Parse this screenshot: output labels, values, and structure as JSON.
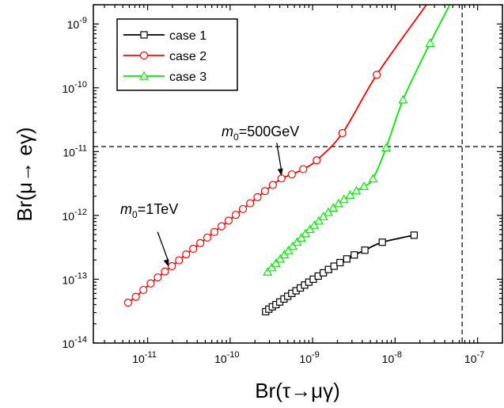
{
  "chart_data": {
    "type": "scatter",
    "xscale": "log",
    "yscale": "log",
    "xlim": [
      2.2e-12,
      2e-07
    ],
    "ylim": [
      1e-14,
      2e-09
    ],
    "xlabel": "Br(τ→μγ)",
    "ylabel": "Br(μ→ eγ)",
    "xticks": [
      {
        "base": "10",
        "exp": "-11",
        "value": 1e-11
      },
      {
        "base": "10",
        "exp": "-10",
        "value": 1e-10
      },
      {
        "base": "10",
        "exp": "-9",
        "value": 1e-09
      },
      {
        "base": "10",
        "exp": "-8",
        "value": 1e-08
      },
      {
        "base": "10",
        "exp": "-7",
        "value": 1e-07
      }
    ],
    "yticks": [
      {
        "base": "10",
        "exp": "-14",
        "value": 1e-14
      },
      {
        "base": "10",
        "exp": "-13",
        "value": 1e-13
      },
      {
        "base": "10",
        "exp": "-12",
        "value": 1e-12
      },
      {
        "base": "10",
        "exp": "-11",
        "value": 1e-11
      },
      {
        "base": "10",
        "exp": "-10",
        "value": 1e-10
      },
      {
        "base": "10",
        "exp": "-9",
        "value": 1e-09
      }
    ],
    "ref_lines": {
      "h": 1.2e-11,
      "v": 6.5e-08
    },
    "legend": {
      "position": "top-left"
    },
    "series": [
      {
        "name": "case 1",
        "color": "#000000",
        "marker": "square",
        "points": [
          [
            2.7e-10,
            3.1e-14
          ],
          [
            2.95e-10,
            3.4e-14
          ],
          [
            3.25e-10,
            3.7e-14
          ],
          [
            3.6e-10,
            4e-14
          ],
          [
            4e-10,
            4.4e-14
          ],
          [
            4.5e-10,
            4.9e-14
          ],
          [
            5e-10,
            5.4e-14
          ],
          [
            5.6e-10,
            6e-14
          ],
          [
            6.3e-10,
            6.6e-14
          ],
          [
            7.1e-10,
            7.3e-14
          ],
          [
            8e-10,
            8.1e-14
          ],
          [
            9e-10,
            9e-14
          ],
          [
            1.02e-09,
            1e-13
          ],
          [
            1.17e-09,
            1.12e-13
          ],
          [
            1.35e-09,
            1.26e-13
          ],
          [
            1.56e-09,
            1.42e-13
          ],
          [
            1.82e-09,
            1.6e-13
          ],
          [
            2.15e-09,
            1.82e-13
          ],
          [
            2.6e-09,
            2.08e-13
          ],
          [
            3.2e-09,
            2.4e-13
          ],
          [
            4.3e-09,
            2.85e-13
          ],
          [
            7e-09,
            3.8e-13
          ],
          [
            1.7e-08,
            4.9e-13
          ]
        ],
        "smooth": true
      },
      {
        "name": "case 2",
        "color": "#ff0000",
        "marker": "circle",
        "points": [
          [
            5.8e-12,
            4.3e-14
          ],
          [
            7.2e-12,
            5.3e-14
          ],
          [
            8.9e-12,
            6.8e-14
          ],
          [
            1.09e-11,
            8.6e-14
          ],
          [
            1.33e-11,
            1.07e-13
          ],
          [
            1.62e-11,
            1.32e-13
          ],
          [
            1.97e-11,
            1.6e-13
          ],
          [
            2.4e-11,
            1.98e-13
          ],
          [
            2.93e-11,
            2.45e-13
          ],
          [
            3.57e-11,
            3e-13
          ],
          [
            4.35e-11,
            3.68e-13
          ],
          [
            5.3e-11,
            4.5e-13
          ],
          [
            6.45e-11,
            5.5e-13
          ],
          [
            7.87e-11,
            6.75e-13
          ],
          [
            9.6e-11,
            8.3e-13
          ],
          [
            1.17e-10,
            1.02e-12
          ],
          [
            1.43e-10,
            1.26e-12
          ],
          [
            1.75e-10,
            1.55e-12
          ],
          [
            2.15e-10,
            1.93e-12
          ],
          [
            2.65e-10,
            2.4e-12
          ],
          [
            3.3e-10,
            3e-12
          ],
          [
            4.2e-10,
            3.8e-12
          ],
          [
            5.6e-10,
            4.4e-12
          ],
          [
            7.7e-10,
            5.3e-12
          ],
          [
            1.12e-09,
            7.3e-12
          ],
          [
            2.3e-09,
            1.95e-11
          ],
          [
            6e-09,
            1.6e-10
          ]
        ],
        "extend_to": [
          2.4e-08,
          2e-09
        ],
        "smooth": true
      },
      {
        "name": "case 3",
        "color": "#00ee00",
        "marker": "triangle",
        "points": [
          [
            2.85e-10,
            1.3e-13
          ],
          [
            3.2e-10,
            1.52e-13
          ],
          [
            3.6e-10,
            1.78e-13
          ],
          [
            4.05e-10,
            2.08e-13
          ],
          [
            4.55e-10,
            2.42e-13
          ],
          [
            5.1e-10,
            2.82e-13
          ],
          [
            5.75e-10,
            3.28e-13
          ],
          [
            6.5e-10,
            3.82e-13
          ],
          [
            7.3e-10,
            4.45e-13
          ],
          [
            8.2e-10,
            5.2e-13
          ],
          [
            9.3e-10,
            6.05e-13
          ],
          [
            1.05e-09,
            7.05e-13
          ],
          [
            1.19e-09,
            8.2e-13
          ],
          [
            1.35e-09,
            9.6e-13
          ],
          [
            1.55e-09,
            1.12e-12
          ],
          [
            1.78e-09,
            1.31e-12
          ],
          [
            2.06e-09,
            1.53e-12
          ],
          [
            2.4e-09,
            1.78e-12
          ],
          [
            2.85e-09,
            2.08e-12
          ],
          [
            3.4e-09,
            2.43e-12
          ],
          [
            4.2e-09,
            2.85e-12
          ],
          [
            5.4e-09,
            3.75e-12
          ],
          [
            7.8e-09,
            1.15e-11
          ],
          [
            1.25e-08,
            6.5e-11
          ],
          [
            2.65e-08,
            5e-10
          ]
        ],
        "extend_to": [
          4.6e-08,
          2e-09
        ],
        "smooth": true
      }
    ],
    "annotations": [
      {
        "m": "m",
        "sub": "0",
        "rest": "=500GeV",
        "arrow_to": [
          4.2e-10,
          3.9e-12
        ]
      },
      {
        "m": "m",
        "sub": "0",
        "rest": "=1TeV",
        "arrow_to": [
          1.8e-11,
          1.48e-13
        ]
      }
    ]
  }
}
